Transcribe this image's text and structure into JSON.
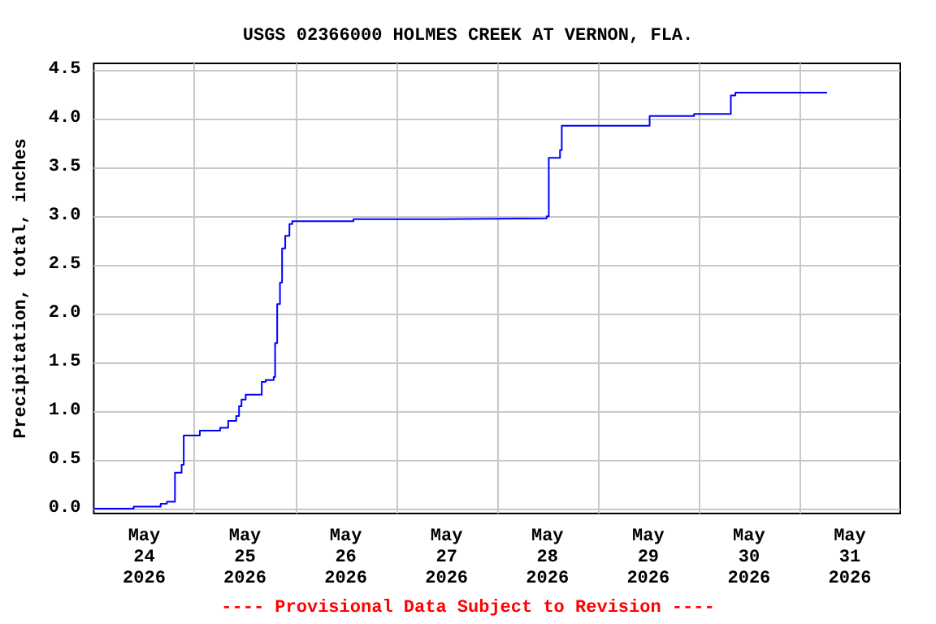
{
  "chart_data": {
    "type": "step",
    "title": "USGS 02366000 HOLMES CREEK AT VERNON, FLA.",
    "ylabel": "Precipitation, total, inches",
    "annotations": [
      "---- Provisional Data Subject to Revision ----"
    ],
    "x": [
      "2026-05-24T00:00",
      "2026-05-24T09:30",
      "2026-05-24T15:55",
      "2026-05-24T17:25",
      "2026-05-24T19:20",
      "2026-05-24T20:55",
      "2026-05-24T21:25",
      "2026-05-25T01:15",
      "2026-05-25T06:05",
      "2026-05-25T08:00",
      "2026-05-25T09:55",
      "2026-05-25T10:35",
      "2026-05-25T11:10",
      "2026-05-25T12:10",
      "2026-05-25T16:00",
      "2026-05-25T16:55",
      "2026-05-25T18:50",
      "2026-05-25T19:10",
      "2026-05-25T19:40",
      "2026-05-25T20:20",
      "2026-05-25T20:50",
      "2026-05-25T21:35",
      "2026-05-25T22:35",
      "2026-05-25T23:15",
      "2026-05-26T13:50",
      "2026-05-27T09:55",
      "2026-05-28T11:50",
      "2026-05-28T12:20",
      "2026-05-28T15:00",
      "2026-05-28T15:25",
      "2026-05-29T12:20",
      "2026-05-29T22:55",
      "2026-05-30T07:40",
      "2026-05-30T08:45",
      "2026-05-31T06:35"
    ],
    "series": [
      {
        "color": "#0000ff",
        "values": [
          0.0,
          0.02,
          0.05,
          0.07,
          0.37,
          0.45,
          0.75,
          0.8,
          0.83,
          0.9,
          0.95,
          1.05,
          1.12,
          1.17,
          1.3,
          1.32,
          1.35,
          1.7,
          2.1,
          2.32,
          2.67,
          2.8,
          2.92,
          2.95,
          2.97,
          2.98,
          3.0,
          3.6,
          3.68,
          3.93,
          4.03,
          4.05,
          4.24,
          4.27,
          4.27
        ]
      }
    ],
    "xlim": [
      "2026-05-24T00:00",
      "2026-06-01T00:00"
    ],
    "xticks": [
      {
        "value": "2026-05-24T12:00",
        "label": "May\n24\n2026"
      },
      {
        "value": "2026-05-25T00:00",
        "label": null
      },
      {
        "value": "2026-05-25T12:00",
        "label": "May\n25\n2026"
      },
      {
        "value": "2026-05-26T00:00",
        "label": null
      },
      {
        "value": "2026-05-26T12:00",
        "label": "May\n26\n2026"
      },
      {
        "value": "2026-05-27T00:00",
        "label": null
      },
      {
        "value": "2026-05-27T12:00",
        "label": "May\n27\n2026"
      },
      {
        "value": "2026-05-28T00:00",
        "label": null
      },
      {
        "value": "2026-05-28T12:00",
        "label": "May\n28\n2026"
      },
      {
        "value": "2026-05-29T00:00",
        "label": null
      },
      {
        "value": "2026-05-29T12:00",
        "label": "May\n29\n2026"
      },
      {
        "value": "2026-05-30T00:00",
        "label": null
      },
      {
        "value": "2026-05-30T12:00",
        "label": "May\n30\n2026"
      },
      {
        "value": "2026-05-31T00:00",
        "label": null
      },
      {
        "value": "2026-05-31T12:00",
        "label": "May\n31\n2026"
      }
    ],
    "ylim": [
      -0.05,
      4.57
    ],
    "yticks": [
      {
        "value": 0,
        "label": "0.0"
      },
      {
        "value": 0.5,
        "label": "0.5"
      },
      {
        "value": 1,
        "label": "1.0"
      },
      {
        "value": 1.5,
        "label": "1.5"
      },
      {
        "value": 2,
        "label": "2.0"
      },
      {
        "value": 2.5,
        "label": "2.5"
      },
      {
        "value": 3,
        "label": "3.0"
      },
      {
        "value": 3.5,
        "label": "3.5"
      },
      {
        "value": 4,
        "label": "4.0"
      },
      {
        "value": 4.5,
        "label": "4.5"
      }
    ],
    "grid": true,
    "marker": "none",
    "line_style": "solid"
  }
}
